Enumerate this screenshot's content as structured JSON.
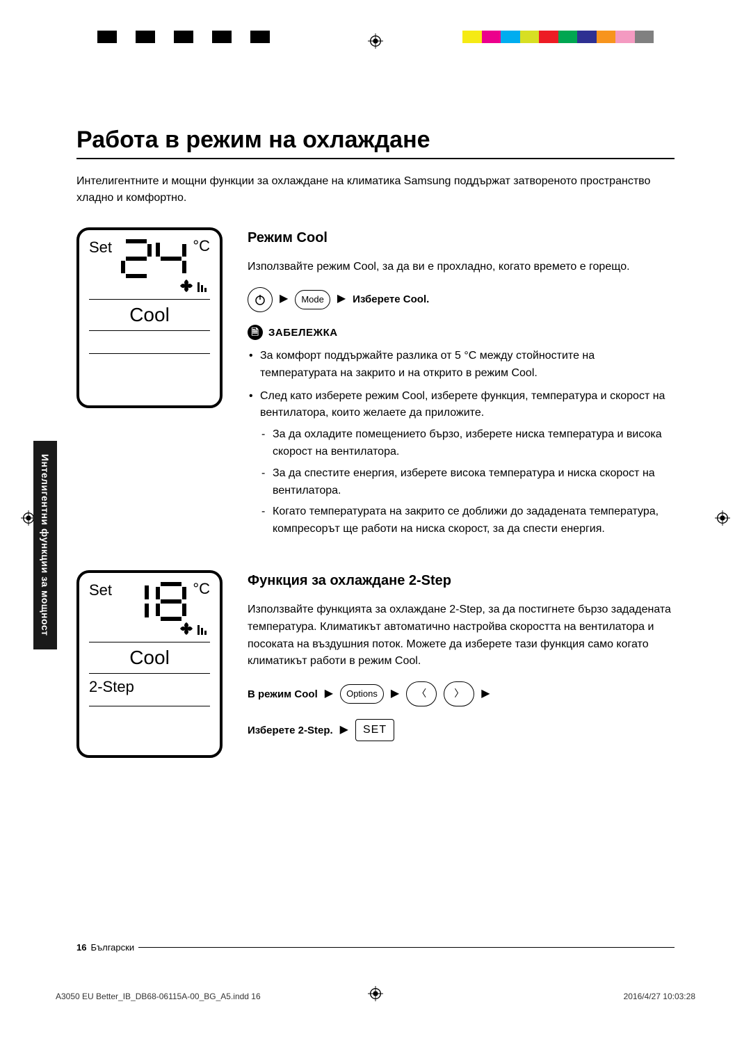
{
  "printer_marks": {
    "left_bar_colors": [
      "#000000",
      "#ffffff",
      "#000000",
      "#ffffff",
      "#000000",
      "#ffffff",
      "#000000",
      "#ffffff",
      "#000000",
      "#ffffff"
    ],
    "right_bar_colors": [
      "#f5ea14",
      "#ec008c",
      "#00adef",
      "#d7df23",
      "#ed1c24",
      "#00a651",
      "#2e3092",
      "#f7941d",
      "#f49ac1",
      "#808080"
    ]
  },
  "title": "Работа в режим на охлаждане",
  "intro": "Интелигентните и мощни функции за охлаждане на климатика Samsung поддържат затвореното пространство хладно и комфортно.",
  "side_tab": "Интелигентни функции за мощност",
  "display1": {
    "set": "Set",
    "temp": "24",
    "unit": "°C",
    "mode": "Cool"
  },
  "display2": {
    "set": "Set",
    "temp": "18",
    "unit": "°C",
    "mode": "Cool",
    "step": "2-Step"
  },
  "cool": {
    "heading": "Режим Cool",
    "desc": "Използвайте режим Cool, за да ви е прохладно, когато времето е горещо.",
    "mode_btn": "Mode",
    "select": "Изберете Cool.",
    "note_label": "ЗАБЕЛЕЖКА",
    "n1": "За комфорт поддържайте разлика от 5 °C между стойностите на температурата на закрито и на открито в режим Cool.",
    "n2": "След като изберете режим Cool, изберете функция, температура и скорост на вентилатора, които желаете да приложите.",
    "n2a": "За да охладите помещението бързо, изберете ниска температура и висока скорост на вентилатора.",
    "n2b": "За да спестите енергия, изберете висока температура и ниска скорост на вентилатора.",
    "n2c": "Когато температурата на закрито се доближи до зададената температура, компресорът ще работи на ниска скорост, за да спести енергия."
  },
  "twostep": {
    "heading": "Функция за охлаждане 2-Step",
    "desc": "Използвайте функцията за охлаждане 2-Step, за да постигнете бързо зададената температура. Климатикът автоматично настройва скоростта на вентилатора и посоката на въздушния поток. Можете да изберете тази функция само когато климатикът работи в режим Cool.",
    "in_cool": "В режим Cool",
    "options_btn": "Options",
    "select_step": "Изберете 2-Step.",
    "set_btn": "SET"
  },
  "footer": {
    "page": "16",
    "lang": "Български"
  },
  "print": {
    "file": "A3050 EU Better_IB_DB68-06115A-00_BG_A5.indd   16",
    "date": "2016/4/27   10:03:28"
  }
}
